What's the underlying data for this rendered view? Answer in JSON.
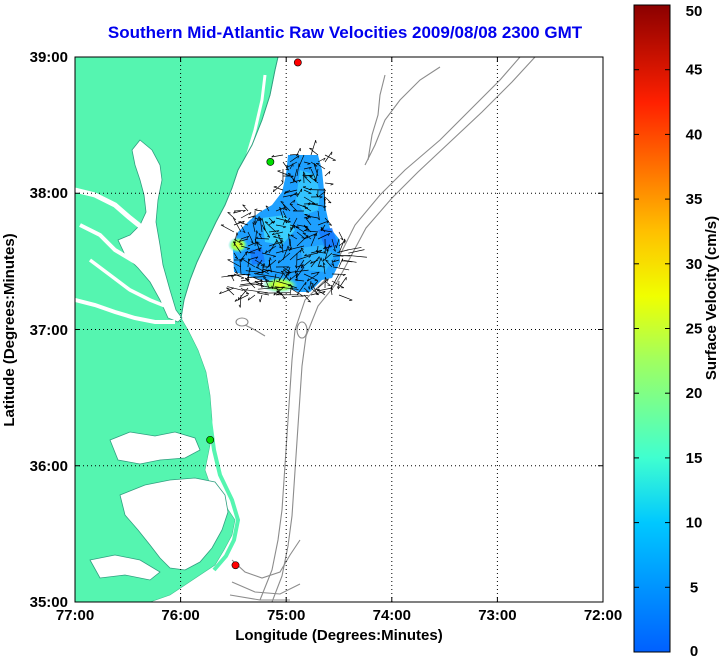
{
  "title": "Southern Mid-Atlantic Raw Velocities 2009/08/08 2300 GMT",
  "map": {
    "x_axis_label": "Longitude (Degrees:Minutes)",
    "y_axis_label": "Latitude (Degrees:Minutes)",
    "lon_ticks": [
      "77:00",
      "76:00",
      "75:00",
      "74:00",
      "73:00",
      "72:00"
    ],
    "lat_ticks": [
      "35:00",
      "36:00",
      "37:00",
      "38:00",
      "39:00"
    ],
    "lon_range_deg_west": [
      77,
      72
    ],
    "lat_range_deg_north": [
      35,
      39
    ],
    "land_color": "#55f5b0",
    "water_color": "#ffffff",
    "bathymetry_color": "#8c8c8c",
    "grid": "dotted"
  },
  "colorbar": {
    "label": "Surface Velocity (cm/s)",
    "ticks": [
      "0",
      "5",
      "10",
      "15",
      "20",
      "25",
      "30",
      "35",
      "40",
      "45",
      "50"
    ],
    "min": 0,
    "max": 50,
    "colormap": "jet"
  },
  "stations": [
    {
      "name": "station-north",
      "color": "#ff0000",
      "lon": -74.89,
      "lat": 38.96
    },
    {
      "name": "station-delmarva",
      "color": "#00dd00",
      "lon": -75.15,
      "lat": 38.23
    },
    {
      "name": "station-outer-banks",
      "color": "#00dd00",
      "lon": -75.72,
      "lat": 36.19
    },
    {
      "name": "station-hatteras",
      "color": "#ff0000",
      "lon": -75.48,
      "lat": 35.27
    }
  ],
  "velocity_field": {
    "region_lon": [
      -75.5,
      -74.5
    ],
    "region_lat": [
      37.4,
      38.27
    ],
    "dominant_speed_cm_s": "5-12",
    "max_speed_cm_s": 27
  }
}
